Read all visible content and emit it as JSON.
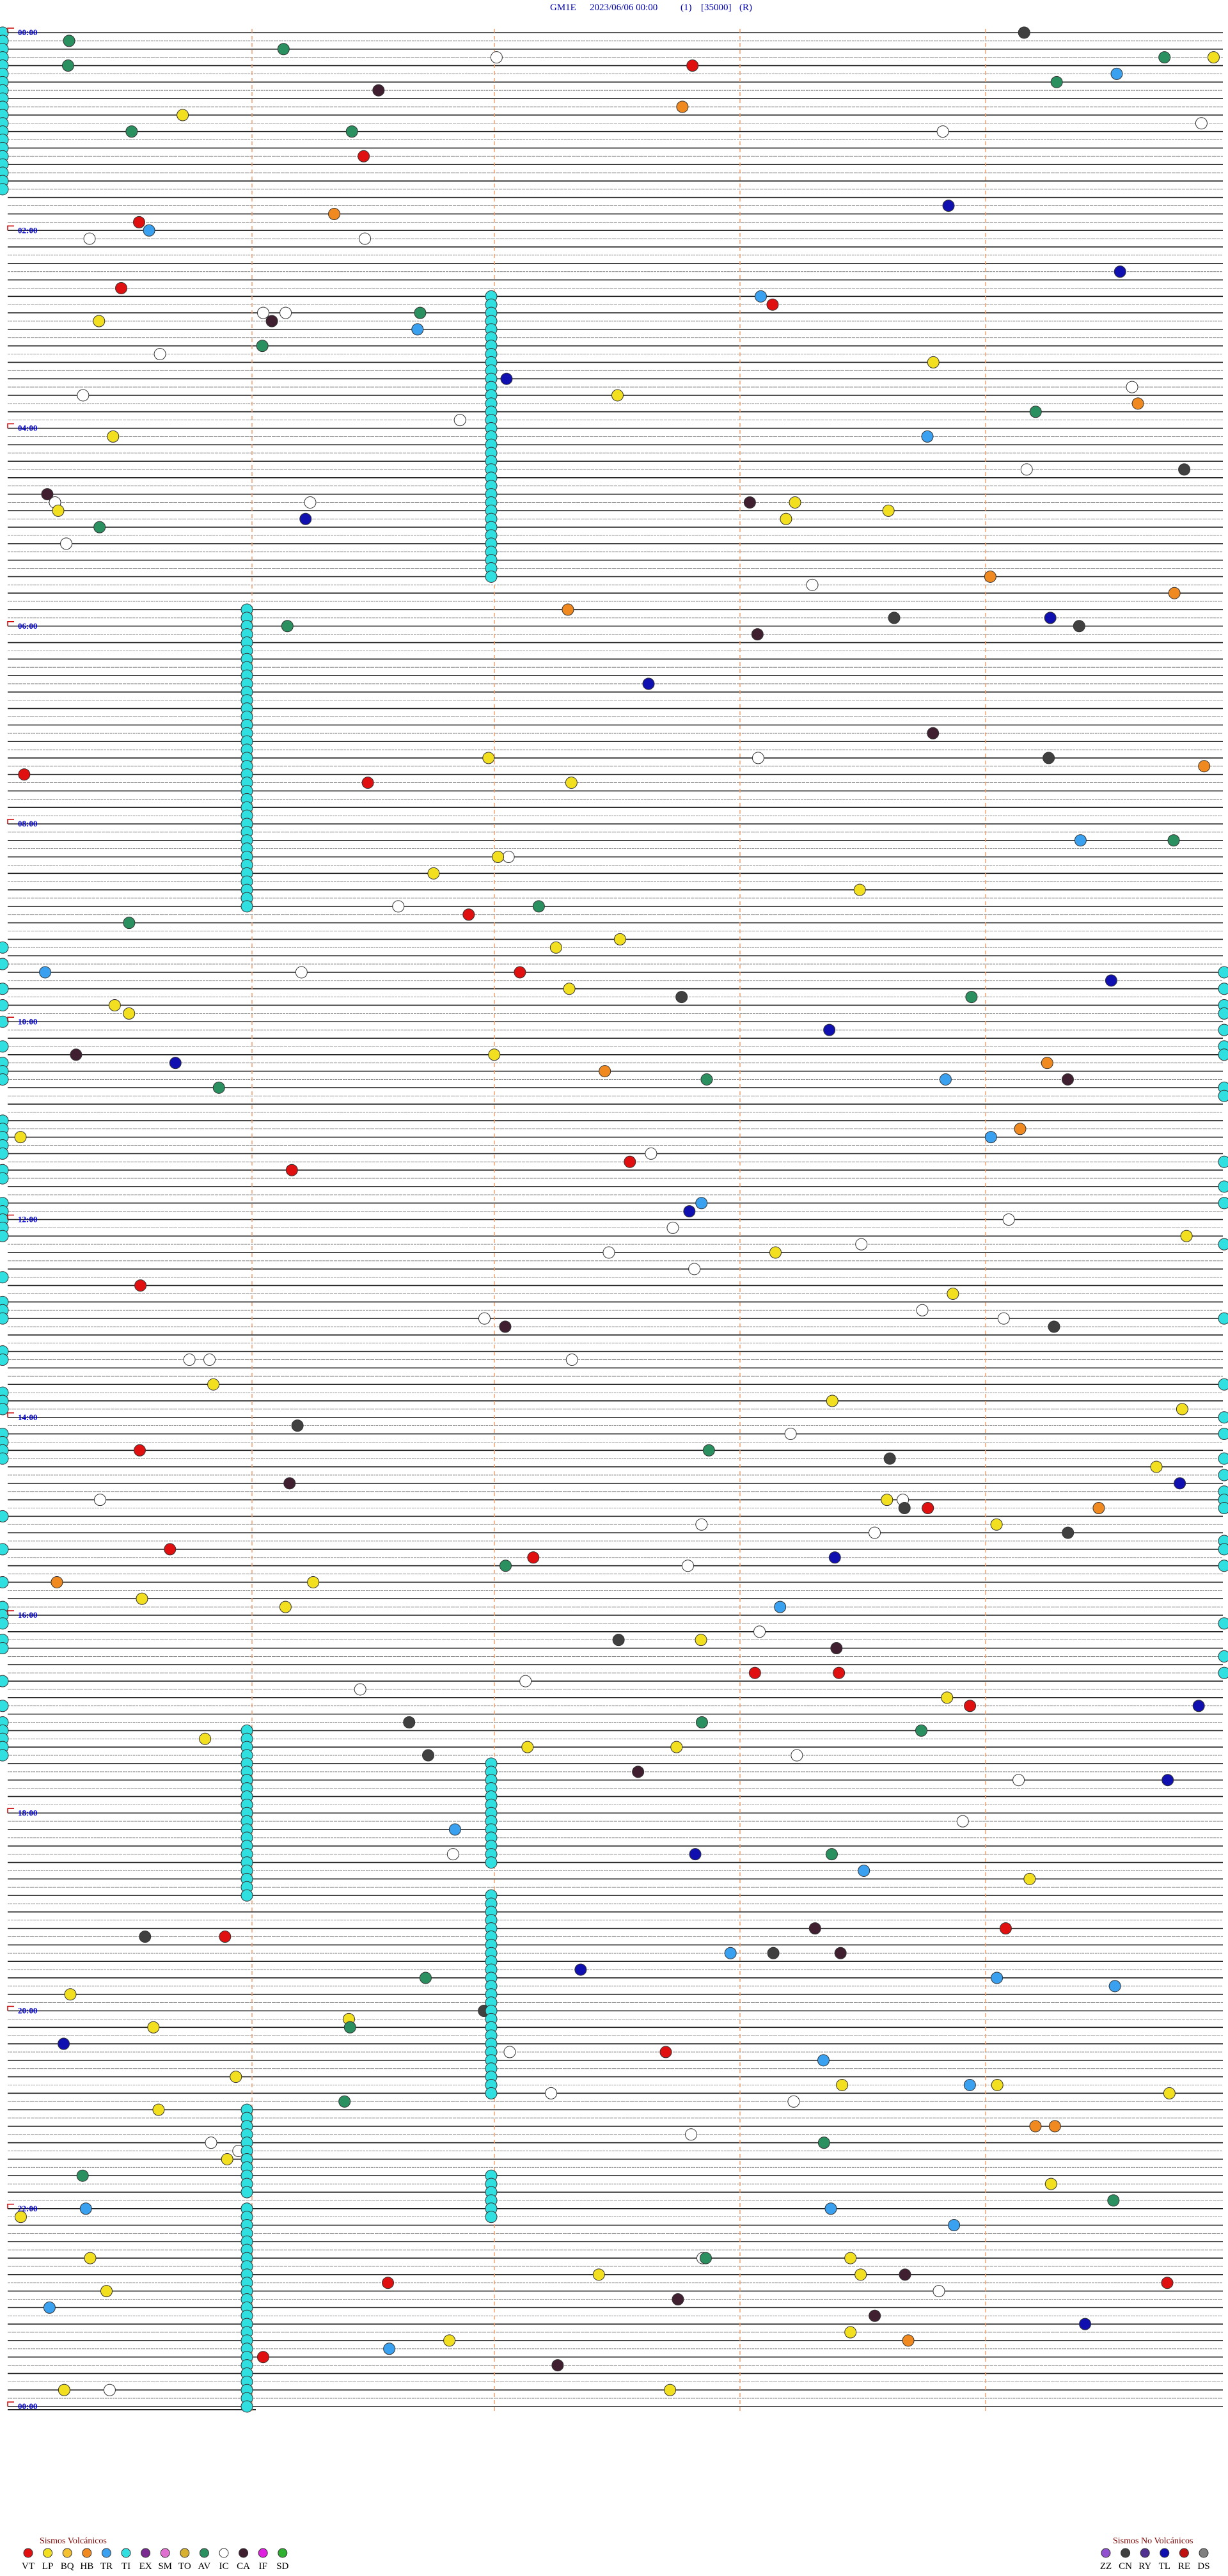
{
  "header": {
    "station": "GM1E",
    "datetime": "2023/06/06 00:00",
    "channel": "(1)",
    "scale": "[35000]",
    "mode": "(R)"
  },
  "time_labels": [
    "00:00",
    "02:00",
    "04:00",
    "06:00",
    "08:00",
    "10:00",
    "12:00",
    "14:00",
    "16:00",
    "18:00",
    "20:00",
    "22:00",
    "00:00"
  ],
  "legend_volcanic": {
    "title": "Sismos Volcánicos",
    "items": [
      {
        "code": "VT",
        "color": "#e01010"
      },
      {
        "code": "LP",
        "color": "#f2e020"
      },
      {
        "code": "BQ",
        "color": "#f5c030"
      },
      {
        "code": "HB",
        "color": "#f08a20"
      },
      {
        "code": "TR",
        "color": "#3aa0f0"
      },
      {
        "code": "TI",
        "color": "#30e0e0"
      },
      {
        "code": "EX",
        "color": "#7a2a90"
      },
      {
        "code": "SM",
        "color": "#e070d0"
      },
      {
        "code": "TO",
        "color": "#d8b030"
      },
      {
        "code": "AV",
        "color": "#2a9060"
      },
      {
        "code": "IC",
        "color": "#ffffff"
      },
      {
        "code": "CA",
        "color": "#402030"
      },
      {
        "code": "IF",
        "color": "#e020e0"
      },
      {
        "code": "SD",
        "color": "#30b030"
      }
    ]
  },
  "legend_nonvolcanic": {
    "title": "Sismos No Volcánicos",
    "items": [
      {
        "code": "ZZ",
        "color": "#9050d0"
      },
      {
        "code": "CN",
        "color": "#404040"
      },
      {
        "code": "RY",
        "color": "#503090"
      },
      {
        "code": "TL",
        "color": "#1010b0"
      },
      {
        "code": "RE",
        "color": "#c01010"
      },
      {
        "code": "DS",
        "color": "#808080"
      }
    ]
  }
}
